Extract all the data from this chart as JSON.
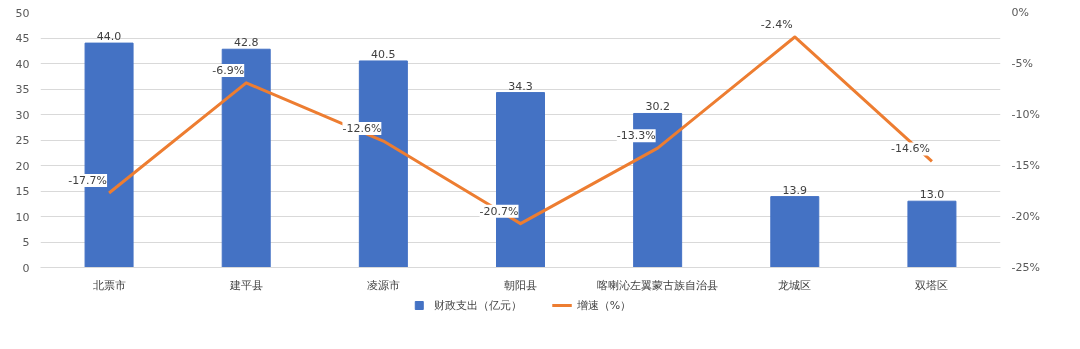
{
  "chart_data": {
    "type": "bar",
    "categories": [
      "北票市",
      "建平县",
      "凌源市",
      "朝阳县",
      "喀喇沁左翼蒙古族自治县",
      "龙城区",
      "双塔区"
    ],
    "series": [
      {
        "name": "财政支出（亿元）",
        "color": "#4472c4",
        "values": [
          44.0,
          42.8,
          40.5,
          34.3,
          30.2,
          13.9,
          13.0
        ],
        "value_labels": [
          "44.0",
          "42.8",
          "40.5",
          "34.3",
          "30.2",
          "13.9",
          "13.0"
        ]
      },
      {
        "name": "增速（%）",
        "type": "line",
        "axis": "y2",
        "color": "#ed7d31",
        "values": [
          -17.7,
          -6.9,
          -12.6,
          -20.7,
          -13.3,
          -2.4,
          -14.6
        ],
        "value_labels": [
          "-17.7%",
          "-6.9%",
          "-12.6%",
          "-20.7%",
          "-13.3%",
          "-2.4%",
          "-14.6%"
        ]
      }
    ],
    "ylim": [
      0,
      50
    ],
    "yticks": [
      0,
      5,
      10,
      15,
      20,
      25,
      30,
      35,
      40,
      45,
      50
    ],
    "y2lim": [
      -25,
      0
    ],
    "y2ticks": [
      {
        "value": 0,
        "label": "0%"
      },
      {
        "value": -5,
        "label": "-5%"
      },
      {
        "value": -10,
        "label": "-10%"
      },
      {
        "value": -15,
        "label": "-15%"
      },
      {
        "value": -20,
        "label": "-20%"
      },
      {
        "value": -25,
        "label": "-25%"
      }
    ],
    "grid": "y",
    "legend": "bottom",
    "marker": "none",
    "line_style": "solid"
  }
}
